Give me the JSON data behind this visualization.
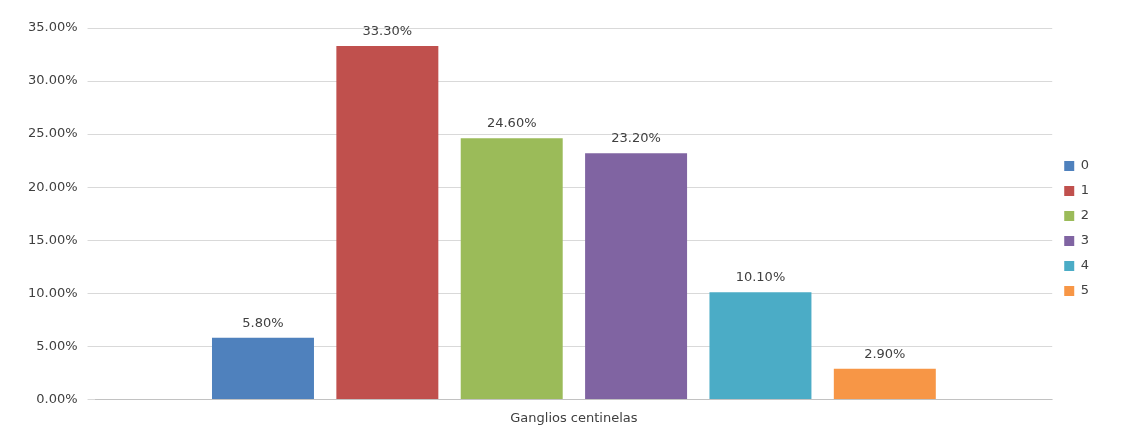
{
  "chart_data": {
    "type": "bar",
    "categories": [
      "Ganglios centinelas"
    ],
    "series": [
      {
        "name": "0",
        "color": "#4f81bd",
        "values": [
          5.8
        ],
        "value_labels": [
          "5.80%"
        ]
      },
      {
        "name": "1",
        "color": "#c0504d",
        "values": [
          33.3
        ],
        "value_labels": [
          "33.30%"
        ]
      },
      {
        "name": "2",
        "color": "#9bbb59",
        "values": [
          24.6
        ],
        "value_labels": [
          "24.60%"
        ]
      },
      {
        "name": "3",
        "color": "#8064a2",
        "values": [
          23.2
        ],
        "value_labels": [
          "23.20%"
        ]
      },
      {
        "name": "4",
        "color": "#4bacc6",
        "values": [
          10.1
        ],
        "value_labels": [
          "10.10%"
        ]
      },
      {
        "name": "5",
        "color": "#f79646",
        "values": [
          2.9
        ],
        "value_labels": [
          "2.90%"
        ]
      }
    ],
    "ylim": [
      0,
      35
    ],
    "yticks": [
      {
        "value": 0,
        "label": "0.00%"
      },
      {
        "value": 5,
        "label": "5.00%"
      },
      {
        "value": 10,
        "label": "10.00%"
      },
      {
        "value": 15,
        "label": "15.00%"
      },
      {
        "value": 20,
        "label": "20.00%"
      },
      {
        "value": 25,
        "label": "25.00%"
      },
      {
        "value": 30,
        "label": "30.00%"
      },
      {
        "value": 35,
        "label": "35.00%"
      }
    ],
    "grid": "y",
    "legend": "right"
  }
}
